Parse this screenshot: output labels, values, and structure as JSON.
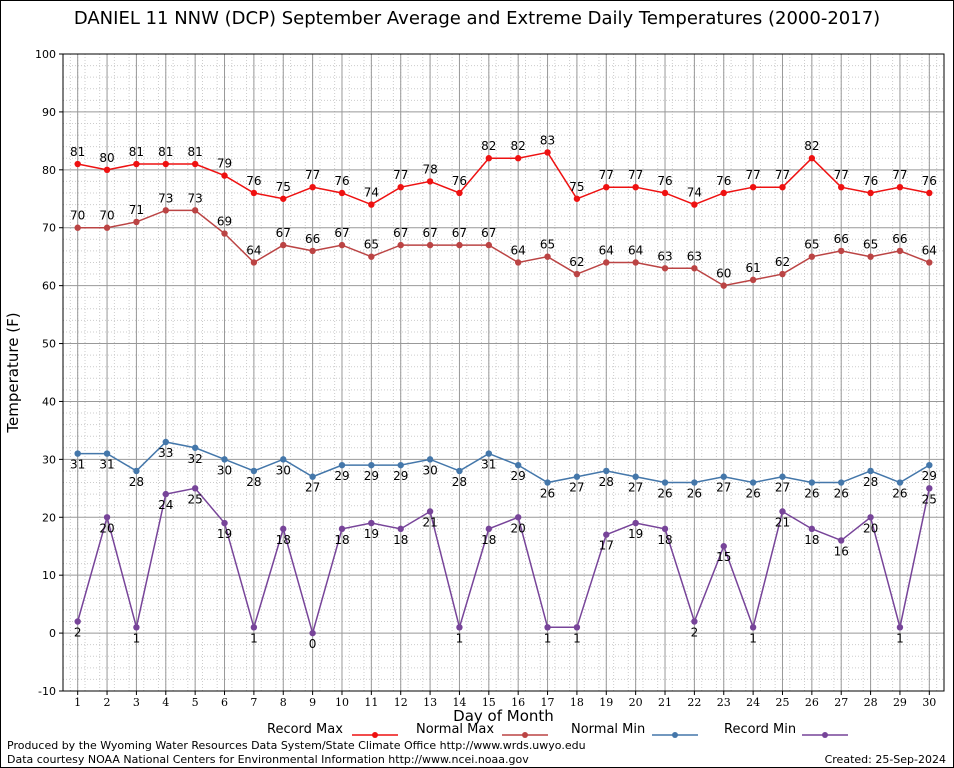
{
  "title": "DANIEL 11 NNW (DCP) September Average and Extreme Daily Temperatures (2000-2017)",
  "footer": {
    "produced_by": "Produced by the Wyoming Water Resources Data System/State Climate Office http://www.wrds.uwyo.edu",
    "courtesy": "Data courtesy NOAA National Centers for Environmental Information http://www.ncei.noaa.gov",
    "created": "Created:  25-Sep-2024"
  },
  "colors": {
    "record_max": "#ee1111",
    "normal_max": "#bb4444",
    "normal_min": "#4477aa",
    "record_min": "#774499",
    "grid_major": "#999999",
    "grid_minor": "#cccccc"
  },
  "chart_data": {
    "type": "line",
    "xlabel": "Day of Month",
    "ylabel": "Temperature (F)",
    "xlim": [
      0.5,
      30.5
    ],
    "ylim": [
      -10,
      100
    ],
    "x": [
      1,
      2,
      3,
      4,
      5,
      6,
      7,
      8,
      9,
      10,
      11,
      12,
      13,
      14,
      15,
      16,
      17,
      18,
      19,
      20,
      21,
      22,
      23,
      24,
      25,
      26,
      27,
      28,
      29,
      30
    ],
    "y_ticks": [
      -10,
      0,
      10,
      20,
      30,
      40,
      50,
      60,
      70,
      80,
      90,
      100
    ],
    "grid": true,
    "legend_position": "bottom",
    "series": [
      {
        "name": "Record Max",
        "color_key": "record_max",
        "label_pos": "above",
        "values": [
          81,
          80,
          81,
          81,
          81,
          79,
          76,
          75,
          77,
          76,
          74,
          77,
          78,
          76,
          82,
          82,
          83,
          75,
          77,
          77,
          76,
          74,
          76,
          77,
          77,
          82,
          77,
          76,
          77,
          76
        ]
      },
      {
        "name": "Normal Max",
        "color_key": "normal_max",
        "label_pos": "above",
        "values": [
          70,
          70,
          71,
          73,
          73,
          69,
          64,
          67,
          66,
          67,
          65,
          67,
          67,
          67,
          67,
          64,
          65,
          62,
          64,
          64,
          63,
          63,
          60,
          61,
          62,
          65,
          66,
          65,
          66,
          64
        ]
      },
      {
        "name": "Normal Min",
        "color_key": "normal_min",
        "label_pos": "below",
        "values": [
          31,
          31,
          28,
          33,
          32,
          30,
          28,
          30,
          27,
          29,
          29,
          29,
          30,
          28,
          31,
          29,
          26,
          27,
          28,
          27,
          26,
          26,
          27,
          26,
          27,
          26,
          26,
          28,
          26,
          29
        ]
      },
      {
        "name": "Record Min",
        "color_key": "record_min",
        "label_pos": "below",
        "values": [
          2,
          20,
          1,
          24,
          25,
          19,
          1,
          18,
          0,
          18,
          19,
          18,
          21,
          1,
          18,
          20,
          1,
          1,
          17,
          19,
          18,
          2,
          15,
          1,
          21,
          18,
          16,
          20,
          1,
          25
        ]
      }
    ]
  }
}
